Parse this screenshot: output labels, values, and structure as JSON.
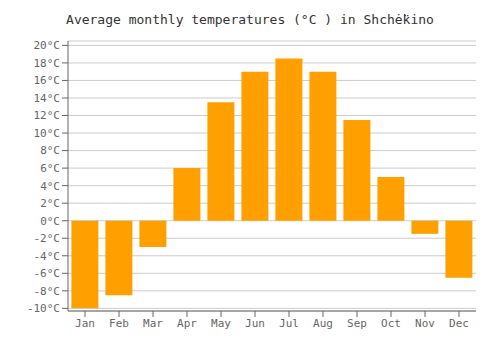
{
  "chart_data": {
    "type": "bar",
    "title": "Average monthly temperatures (°C ) in Shchė̈kino",
    "categories": [
      "Jan",
      "Feb",
      "Mar",
      "Apr",
      "May",
      "Jun",
      "Jul",
      "Aug",
      "Sep",
      "Oct",
      "Nov",
      "Dec"
    ],
    "values": [
      -10,
      -8.5,
      -3,
      6,
      13.5,
      17,
      18.5,
      17,
      11.5,
      5,
      -1.5,
      -6.5
    ],
    "color": "#FFA000",
    "ylim": [
      -10.3,
      20.5
    ],
    "yticks": [
      {
        "value": -10,
        "label": "-10°C"
      },
      {
        "value": -8,
        "label": "-8°C"
      },
      {
        "value": -6,
        "label": "-6°C"
      },
      {
        "value": -4,
        "label": "-4°C"
      },
      {
        "value": -2,
        "label": "-2°C"
      },
      {
        "value": 0,
        "label": "0°C"
      },
      {
        "value": 2,
        "label": "2°C"
      },
      {
        "value": 4,
        "label": "4°C"
      },
      {
        "value": 6,
        "label": "6°C"
      },
      {
        "value": 8,
        "label": "8°C"
      },
      {
        "value": 10,
        "label": "10°C"
      },
      {
        "value": 12,
        "label": "12°C"
      },
      {
        "value": 14,
        "label": "14°C"
      },
      {
        "value": 16,
        "label": "16°C"
      },
      {
        "value": 18,
        "label": "18°C"
      },
      {
        "value": 20,
        "label": "20°C"
      }
    ],
    "grid": true
  }
}
